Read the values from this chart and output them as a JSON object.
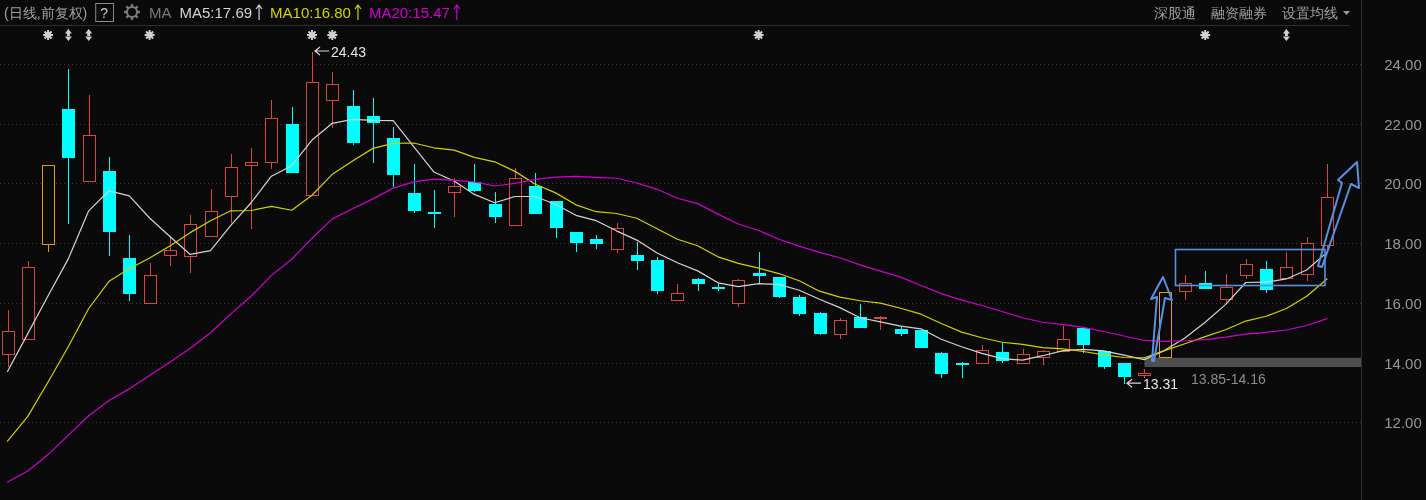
{
  "chart_data": {
    "type": "candlestick",
    "subtitle": "(日线,前复权)",
    "categories": [
      null,
      null,
      null,
      null,
      null,
      null,
      null,
      null,
      null,
      null,
      null,
      null,
      null,
      null,
      null,
      null,
      null,
      null,
      null,
      null,
      null,
      null,
      null,
      null,
      null,
      null,
      null,
      null,
      null,
      null,
      null,
      null,
      null,
      null,
      null,
      null,
      null,
      null,
      null,
      null,
      null,
      null,
      null,
      null,
      null,
      null,
      null,
      null,
      null,
      null,
      null,
      null,
      null,
      null,
      null,
      null,
      null,
      null,
      null,
      null,
      null,
      null,
      null,
      null,
      null,
      null
    ],
    "ohlc": [
      [
        14.29,
        15.78,
        13.89,
        15.07
      ],
      [
        14.8,
        17.44,
        14.8,
        17.19
      ],
      [
        17.98,
        20.63,
        17.73,
        20.63
      ],
      [
        22.5,
        23.87,
        18.68,
        20.88
      ],
      [
        20.09,
        22.98,
        20.09,
        21.63
      ],
      [
        20.4,
        20.9,
        17.59,
        18.42
      ],
      [
        17.51,
        18.3,
        16.08,
        16.32
      ],
      [
        16.01,
        17.37,
        16.01,
        16.93
      ],
      [
        17.6,
        18.28,
        17.26,
        17.78
      ],
      [
        17.57,
        18.98,
        17.03,
        18.63
      ],
      [
        18.23,
        19.84,
        18.23,
        19.08
      ],
      [
        19.57,
        21.0,
        18.7,
        20.54
      ],
      [
        20.62,
        21.21,
        18.51,
        20.73
      ],
      [
        20.72,
        22.81,
        20.51,
        22.2
      ],
      [
        22.0,
        22.6,
        20.38,
        20.38
      ],
      [
        19.6,
        24.43,
        19.6,
        23.4
      ],
      [
        22.8,
        23.77,
        21.9,
        23.32
      ],
      [
        22.6,
        23.17,
        21.32,
        21.39
      ],
      [
        22.24,
        22.89,
        20.73,
        22.06
      ],
      [
        21.51,
        21.92,
        19.92,
        20.31
      ],
      [
        19.68,
        20.67,
        19.05,
        19.12
      ],
      [
        19.03,
        19.81,
        18.54,
        19.0
      ],
      [
        19.7,
        20.2,
        18.92,
        19.92
      ],
      [
        20.04,
        20.67,
        19.75,
        19.79
      ],
      [
        19.31,
        19.73,
        18.72,
        18.92
      ],
      [
        18.62,
        20.56,
        18.62,
        20.17
      ],
      [
        19.91,
        20.38,
        19.0,
        19.01
      ],
      [
        19.4,
        19.45,
        18.2,
        18.54
      ],
      [
        18.36,
        18.36,
        17.73,
        18.02
      ],
      [
        18.14,
        18.31,
        17.83,
        18.0
      ],
      [
        17.8,
        18.71,
        17.69,
        18.5
      ],
      [
        17.61,
        18.07,
        17.14,
        17.43
      ],
      [
        17.42,
        17.56,
        16.34,
        16.42
      ],
      [
        16.11,
        16.68,
        16.11,
        16.33
      ],
      [
        16.8,
        16.86,
        16.42,
        16.67
      ],
      [
        16.52,
        16.7,
        16.42,
        16.5
      ],
      [
        16.01,
        16.84,
        15.91,
        16.77
      ],
      [
        17.01,
        17.73,
        16.68,
        16.92
      ],
      [
        16.86,
        16.91,
        16.2,
        16.23
      ],
      [
        16.2,
        16.3,
        15.59,
        15.67
      ],
      [
        15.67,
        15.71,
        14.94,
        14.99
      ],
      [
        14.94,
        15.51,
        14.82,
        15.41
      ],
      [
        15.51,
        16.01,
        15.2,
        15.2
      ],
      [
        15.49,
        15.59,
        15.14,
        15.51
      ],
      [
        15.14,
        15.22,
        14.91,
        14.99
      ],
      [
        15.1,
        15.1,
        14.53,
        14.53
      ],
      [
        14.31,
        14.4,
        13.53,
        13.66
      ],
      [
        13.99,
        14.06,
        13.53,
        13.97
      ],
      [
        14.0,
        14.61,
        14.0,
        14.41
      ],
      [
        14.36,
        14.68,
        14.01,
        14.1
      ],
      [
        13.98,
        14.5,
        13.98,
        14.28
      ],
      [
        14.19,
        14.45,
        13.94,
        14.39
      ],
      [
        14.38,
        15.27,
        14.38,
        14.8
      ],
      [
        15.17,
        15.23,
        14.37,
        14.61
      ],
      [
        14.4,
        14.4,
        13.81,
        13.89
      ],
      [
        13.98,
        14.03,
        13.31,
        13.54
      ],
      [
        13.6,
        13.83,
        13.51,
        13.64
      ],
      [
        14.18,
        16.37,
        14.18,
        16.37
      ],
      [
        16.4,
        16.96,
        16.14,
        16.68
      ],
      [
        16.68,
        17.11,
        16.5,
        16.5
      ],
      [
        16.14,
        16.99,
        16.03,
        16.53
      ],
      [
        16.92,
        17.51,
        16.82,
        17.3
      ],
      [
        17.14,
        17.42,
        16.37,
        16.46
      ],
      [
        16.82,
        17.73,
        16.82,
        17.21
      ],
      [
        16.97,
        18.23,
        16.76,
        18.0
      ],
      [
        17.92,
        20.68,
        17.85,
        19.53
      ]
    ],
    "colors": [
      "#d9463f",
      "#d9463f",
      "#e09a1e",
      "#00ffff",
      "#d9463f",
      "#00ffff",
      "#00ffff",
      "#d9463f",
      "#d9463f",
      "#d9463f",
      "#d9463f",
      "#d9463f",
      "#d9463f",
      "#d9463f",
      "#00ffff",
      "#d9463f",
      "#d9463f",
      "#00ffff",
      "#00ffff",
      "#00ffff",
      "#00ffff",
      "#00ffff",
      "#d9463f",
      "#00ffff",
      "#00ffff",
      "#d9463f",
      "#00ffff",
      "#00ffff",
      "#00ffff",
      "#00ffff",
      "#d9463f",
      "#00ffff",
      "#00ffff",
      "#d9463f",
      "#00ffff",
      "#00ffff",
      "#d9463f",
      "#00ffff",
      "#00ffff",
      "#00ffff",
      "#00ffff",
      "#d9463f",
      "#00ffff",
      "#d9463f",
      "#00ffff",
      "#00ffff",
      "#00ffff",
      "#00ffff",
      "#d9463f",
      "#00ffff",
      "#d9463f",
      "#d9463f",
      "#d9463f",
      "#00ffff",
      "#00ffff",
      "#00ffff",
      "#d9463f",
      "#e09a1e",
      "#d9463f",
      "#00ffff",
      "#d9463f",
      "#d9463f",
      "#00ffff",
      "#d9463f",
      "#d9463f",
      "#d9463f"
    ],
    "series": [
      {
        "name": "MA5:17.69",
        "type": "line",
        "color": "#d4d4d4",
        "values": [
          13.7,
          14.97,
          16.24,
          17.48,
          19.08,
          19.75,
          19.58,
          18.84,
          18.22,
          17.62,
          17.75,
          18.59,
          19.35,
          20.24,
          20.59,
          21.45,
          22.01,
          22.14,
          22.11,
          22.1,
          21.24,
          20.38,
          20.08,
          19.63,
          19.35,
          19.56,
          19.56,
          19.29,
          18.93,
          18.75,
          18.41,
          18.1,
          17.67,
          17.34,
          17.07,
          16.67,
          16.54,
          16.64,
          16.62,
          16.42,
          16.12,
          15.84,
          15.5,
          15.36,
          15.22,
          15.13,
          14.78,
          14.53,
          14.31,
          14.13,
          14.08,
          14.23,
          14.4,
          14.44,
          14.39,
          14.25,
          14.1,
          14.41,
          14.82,
          15.35,
          15.94,
          16.68,
          16.69,
          16.8,
          17.1,
          17.69
        ]
      },
      {
        "name": "MA10:16.80",
        "type": "line",
        "color": "#d2d200",
        "values": [
          11.37,
          12.2,
          13.35,
          14.54,
          15.81,
          16.72,
          17.14,
          17.5,
          17.9,
          18.35,
          18.75,
          19.08,
          19.09,
          19.23,
          19.1,
          19.6,
          20.3,
          20.75,
          21.17,
          21.34,
          21.35,
          21.19,
          21.11,
          20.87,
          20.72,
          20.4,
          19.97,
          19.68,
          19.28,
          19.05,
          18.99,
          18.83,
          18.48,
          18.13,
          17.91,
          17.54,
          17.32,
          17.16,
          16.98,
          16.74,
          16.39,
          16.19,
          16.07,
          15.99,
          15.82,
          15.62,
          15.31,
          15.02,
          14.83,
          14.68,
          14.61,
          14.5,
          14.46,
          14.37,
          14.26,
          14.17,
          14.16,
          14.4,
          14.63,
          14.87,
          15.1,
          15.39,
          15.55,
          15.81,
          16.22,
          16.8
        ]
      },
      {
        "name": "MA20:15.47",
        "type": "line",
        "color": "#d000d0",
        "values": [
          10.0,
          10.37,
          10.92,
          11.57,
          12.22,
          12.73,
          13.12,
          13.57,
          14.01,
          14.48,
          15.0,
          15.63,
          16.22,
          16.92,
          17.46,
          18.16,
          18.81,
          19.15,
          19.48,
          19.84,
          20.05,
          20.14,
          20.1,
          20.05,
          19.91,
          20.0,
          20.13,
          20.21,
          20.23,
          20.2,
          20.17,
          20.01,
          19.8,
          19.5,
          19.32,
          18.97,
          18.64,
          18.42,
          18.13,
          17.9,
          17.69,
          17.51,
          17.27,
          17.06,
          16.86,
          16.58,
          16.31,
          16.09,
          15.91,
          15.71,
          15.5,
          15.35,
          15.27,
          15.18,
          15.04,
          14.89,
          14.74,
          14.71,
          14.73,
          14.77,
          14.85,
          14.95,
          15.01,
          15.09,
          15.24,
          15.47
        ]
      }
    ],
    "ylim": [
      9.4,
      25.3
    ],
    "yticks": [
      {
        "value": 12,
        "label": "12.00"
      },
      {
        "value": 14,
        "label": "14.00"
      },
      {
        "value": 16,
        "label": "16.00"
      },
      {
        "value": 18,
        "label": "18.00"
      },
      {
        "value": 20,
        "label": "20.00"
      },
      {
        "value": 22,
        "label": "22.00"
      },
      {
        "value": 24,
        "label": "24.00"
      }
    ],
    "grid": "y",
    "legend": "top left",
    "bands": [
      {
        "axis": "y",
        "from": 13.85,
        "to": 14.16,
        "label": "13.85-14.16",
        "color": "#4e4e4e"
      }
    ],
    "annotations": [
      "24.43",
      "13.31",
      "?",
      "MA",
      "深股通",
      "融资融券",
      "设置均线"
    ]
  }
}
